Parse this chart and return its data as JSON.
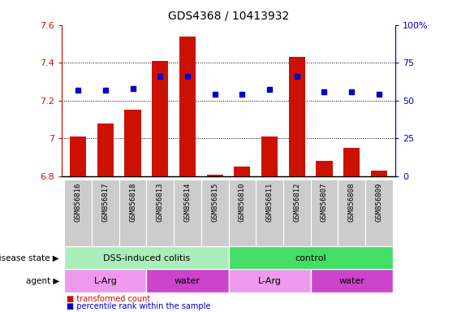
{
  "title": "GDS4368 / 10413932",
  "samples": [
    "GSM856816",
    "GSM856817",
    "GSM856818",
    "GSM856813",
    "GSM856814",
    "GSM856815",
    "GSM856810",
    "GSM856811",
    "GSM856812",
    "GSM856807",
    "GSM856808",
    "GSM856809"
  ],
  "bar_values": [
    7.01,
    7.08,
    7.15,
    7.41,
    7.54,
    6.81,
    6.85,
    7.01,
    7.43,
    6.88,
    6.95,
    6.83
  ],
  "dot_values": [
    7.255,
    7.255,
    7.265,
    7.33,
    7.33,
    7.235,
    7.235,
    7.26,
    7.33,
    7.245,
    7.245,
    7.235
  ],
  "bar_bottom": 6.8,
  "ylim": [
    6.8,
    7.6
  ],
  "yticks": [
    6.8,
    7.0,
    7.2,
    7.4,
    7.6
  ],
  "right_yticks": [
    0,
    25,
    50,
    75,
    100
  ],
  "bar_color": "#cc1100",
  "dot_color": "#0000cc",
  "disease_state_groups": [
    {
      "label": "DSS-induced colitis",
      "start": 0,
      "end": 6,
      "color": "#aaeebb"
    },
    {
      "label": "control",
      "start": 6,
      "end": 12,
      "color": "#44dd66"
    }
  ],
  "agent_groups": [
    {
      "label": "L-Arg",
      "start": 0,
      "end": 3,
      "color": "#ee99ee"
    },
    {
      "label": "water",
      "start": 3,
      "end": 6,
      "color": "#cc44cc"
    },
    {
      "label": "L-Arg",
      "start": 6,
      "end": 9,
      "color": "#ee99ee"
    },
    {
      "label": "water",
      "start": 9,
      "end": 12,
      "color": "#cc44cc"
    }
  ],
  "legend_items": [
    {
      "label": "transformed count",
      "color": "#cc1100"
    },
    {
      "label": "percentile rank within the sample",
      "color": "#0000cc"
    }
  ],
  "label_disease_state": "disease state",
  "label_agent": "agent"
}
